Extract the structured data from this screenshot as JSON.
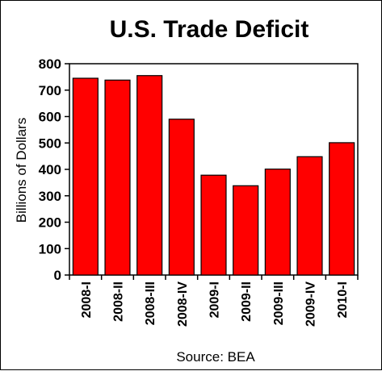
{
  "chart_data": {
    "type": "bar",
    "title": "U.S. Trade Deficit",
    "ylabel": "Billions of Dollars",
    "xlabel": "",
    "source": "Source: BEA",
    "categories": [
      "2008-I",
      "2008-II",
      "2008-III",
      "2008-IV",
      "2009-I",
      "2009-II",
      "2009-III",
      "2009-IV",
      "2010-I"
    ],
    "values": [
      745,
      738,
      755,
      590,
      378,
      338,
      401,
      448,
      501
    ],
    "ylim": [
      0,
      800
    ],
    "yticks": [
      "0",
      "100",
      "200",
      "300",
      "400",
      "500",
      "600",
      "700",
      "800"
    ],
    "grid": false,
    "bar_color": "#ff0000"
  }
}
